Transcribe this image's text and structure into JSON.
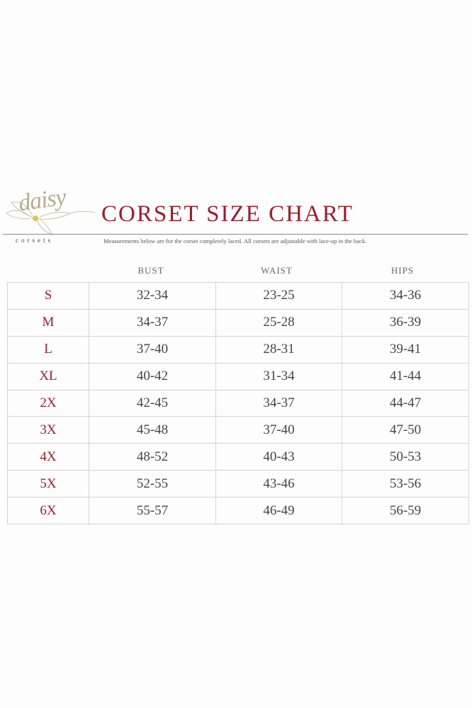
{
  "logo": {
    "script": "daisy",
    "subtitle": "corsets"
  },
  "title": "CORSET SIZE CHART",
  "subtitle": "Measurements below are for the corset completely laced. All corsets are adjustable with lace-up in the back.",
  "colors": {
    "accent": "#9b1f2e",
    "text": "#444444",
    "border": "#d4d4d4"
  },
  "headers": [
    "BUST",
    "WAIST",
    "HIPS"
  ],
  "rows": [
    {
      "size": "S",
      "bust": "32-34",
      "waist": "23-25",
      "hips": "34-36"
    },
    {
      "size": "M",
      "bust": "34-37",
      "waist": "25-28",
      "hips": "36-39"
    },
    {
      "size": "L",
      "bust": "37-40",
      "waist": "28-31",
      "hips": "39-41"
    },
    {
      "size": "XL",
      "bust": "40-42",
      "waist": "31-34",
      "hips": "41-44"
    },
    {
      "size": "2X",
      "bust": "42-45",
      "waist": "34-37",
      "hips": "44-47"
    },
    {
      "size": "3X",
      "bust": "45-48",
      "waist": "37-40",
      "hips": "47-50"
    },
    {
      "size": "4X",
      "bust": "48-52",
      "waist": "40-43",
      "hips": "50-53"
    },
    {
      "size": "5X",
      "bust": "52-55",
      "waist": "43-46",
      "hips": "53-56"
    },
    {
      "size": "6X",
      "bust": "55-57",
      "waist": "46-49",
      "hips": "56-59"
    }
  ]
}
